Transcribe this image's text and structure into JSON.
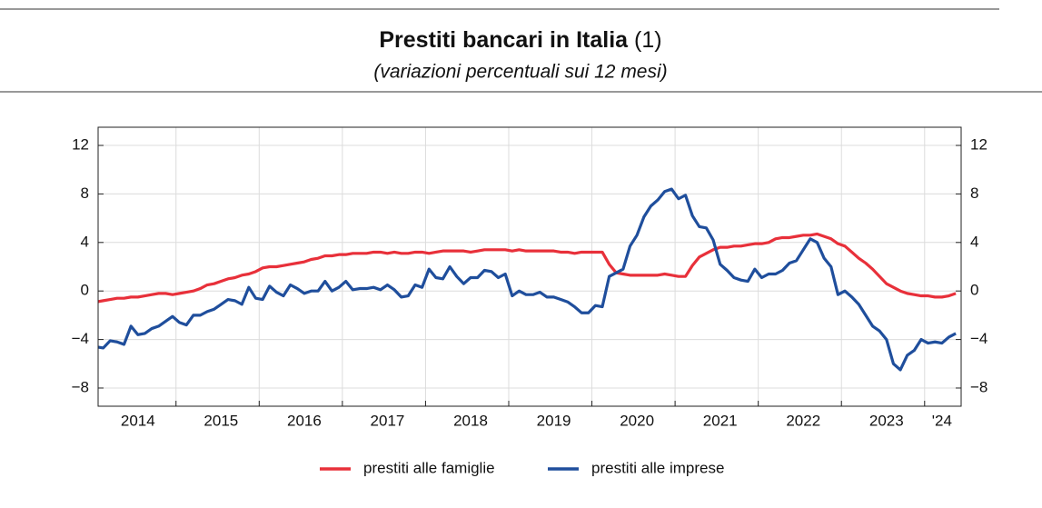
{
  "chart_data": {
    "type": "line",
    "title": "Prestiti bancari in Italia",
    "title_note": "(1)",
    "subtitle": "(variazioni percentuali sui 12 mesi)",
    "categories": [
      null,
      null,
      null,
      null,
      null,
      null,
      "2014",
      null,
      null,
      null,
      null,
      null,
      null,
      null,
      null,
      null,
      null,
      null,
      "2015",
      null,
      null,
      null,
      null,
      null,
      null,
      null,
      null,
      null,
      null,
      null,
      "2016",
      null,
      null,
      null,
      null,
      null,
      null,
      null,
      null,
      null,
      null,
      null,
      "2017",
      null,
      null,
      null,
      null,
      null,
      null,
      null,
      null,
      null,
      null,
      null,
      "2018",
      null,
      null,
      null,
      null,
      null,
      null,
      null,
      null,
      null,
      null,
      null,
      "2019",
      null,
      null,
      null,
      null,
      null,
      null,
      null,
      null,
      null,
      null,
      null,
      "2020",
      null,
      null,
      null,
      null,
      null,
      null,
      null,
      null,
      null,
      null,
      null,
      "2021",
      null,
      null,
      null,
      null,
      null,
      null,
      null,
      null,
      null,
      null,
      null,
      "2022",
      null,
      null,
      null,
      null,
      null,
      null,
      null,
      null,
      null,
      null,
      null,
      "2023",
      null,
      null,
      null,
      null,
      null,
      null,
      null,
      "'24",
      null,
      null
    ],
    "series": [
      {
        "name": "prestiti alle famiglie",
        "color": "#e8303a",
        "values": [
          -0.9,
          -0.8,
          -0.7,
          -0.6,
          -0.6,
          -0.5,
          -0.5,
          -0.4,
          -0.3,
          -0.2,
          -0.2,
          -0.3,
          -0.2,
          -0.1,
          0.0,
          0.2,
          0.5,
          0.6,
          0.8,
          1.0,
          1.1,
          1.3,
          1.4,
          1.6,
          1.9,
          2.0,
          2.0,
          2.1,
          2.2,
          2.3,
          2.4,
          2.6,
          2.7,
          2.9,
          2.9,
          3.0,
          3.0,
          3.1,
          3.1,
          3.1,
          3.2,
          3.2,
          3.1,
          3.2,
          3.1,
          3.1,
          3.2,
          3.2,
          3.1,
          3.2,
          3.3,
          3.3,
          3.3,
          3.3,
          3.2,
          3.3,
          3.4,
          3.4,
          3.4,
          3.4,
          3.3,
          3.4,
          3.3,
          3.3,
          3.3,
          3.3,
          3.3,
          3.2,
          3.2,
          3.1,
          3.2,
          3.2,
          3.2,
          3.2,
          2.2,
          1.5,
          1.4,
          1.3,
          1.3,
          1.3,
          1.3,
          1.3,
          1.4,
          1.3,
          1.2,
          1.2,
          2.1,
          2.8,
          3.1,
          3.4,
          3.6,
          3.6,
          3.7,
          3.7,
          3.8,
          3.9,
          3.9,
          4.0,
          4.3,
          4.4,
          4.4,
          4.5,
          4.6,
          4.6,
          4.7,
          4.5,
          4.3,
          3.9,
          3.7,
          3.2,
          2.7,
          2.3,
          1.8,
          1.2,
          0.6,
          0.3,
          0.0,
          -0.2,
          -0.3,
          -0.4,
          -0.4,
          -0.5,
          -0.5,
          -0.4,
          -0.2
        ]
      },
      {
        "name": "prestiti alle imprese",
        "color": "#1f4e9c",
        "values": [
          -4.6,
          -4.7,
          -4.1,
          -4.2,
          -4.4,
          -2.9,
          -3.6,
          -3.5,
          -3.1,
          -2.9,
          -2.5,
          -2.1,
          -2.6,
          -2.8,
          -2.0,
          -2.0,
          -1.7,
          -1.5,
          -1.1,
          -0.7,
          -0.8,
          -1.1,
          0.3,
          -0.6,
          -0.7,
          0.4,
          -0.1,
          -0.4,
          0.5,
          0.2,
          -0.2,
          0.0,
          0.0,
          0.8,
          0.0,
          0.3,
          0.8,
          0.1,
          0.2,
          0.2,
          0.3,
          0.1,
          0.5,
          0.1,
          -0.5,
          -0.4,
          0.5,
          0.3,
          1.8,
          1.1,
          1.0,
          2.0,
          1.2,
          0.6,
          1.1,
          1.1,
          1.7,
          1.6,
          1.1,
          1.4,
          -0.4,
          0.0,
          -0.3,
          -0.3,
          -0.1,
          -0.5,
          -0.5,
          -0.7,
          -0.9,
          -1.3,
          -1.8,
          -1.8,
          -1.2,
          -1.3,
          1.2,
          1.5,
          1.8,
          3.7,
          4.6,
          6.1,
          7.0,
          7.5,
          8.2,
          8.4,
          7.6,
          7.9,
          6.2,
          5.3,
          5.2,
          4.2,
          2.2,
          1.7,
          1.1,
          0.9,
          0.8,
          1.8,
          1.1,
          1.4,
          1.4,
          1.7,
          2.3,
          2.5,
          3.4,
          4.3,
          4.0,
          2.7,
          2.0,
          -0.3,
          0.0,
          -0.5,
          -1.1,
          -2.0,
          -2.9,
          -3.3,
          -4.0,
          -6.0,
          -6.5,
          -5.3,
          -4.9,
          -4.0,
          -4.3,
          -4.2,
          -4.3,
          -3.8,
          -3.5
        ]
      }
    ],
    "ylim": [
      -9.5,
      13.5
    ],
    "yticks": [
      12,
      8,
      4,
      0,
      {
        "value": -4,
        "label": "−4"
      },
      {
        "value": -8,
        "label": "−8"
      }
    ],
    "y2lim": [
      -9.5,
      13.5
    ],
    "y2ticks": [
      12,
      8,
      4,
      0,
      {
        "value": -4,
        "label": "−4"
      },
      {
        "value": -8,
        "label": "−8"
      }
    ],
    "grid": true
  }
}
